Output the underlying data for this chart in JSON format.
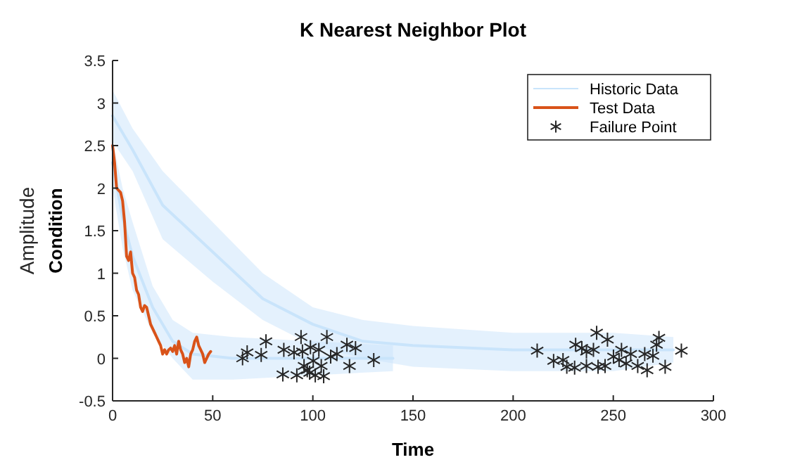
{
  "chart_data": {
    "type": "line",
    "title": "K Nearest Neighbor Plot",
    "xlabel": "Time",
    "ylabel": "Condition",
    "annotations": [
      "Amplitude"
    ],
    "xlim": [
      0,
      300
    ],
    "xticks": [
      0,
      50,
      100,
      150,
      200,
      250,
      300
    ],
    "ylim": [
      -0.5,
      3.5
    ],
    "yticks": [
      -0.5,
      0,
      0.5,
      1,
      1.5,
      2,
      2.5,
      3,
      3.5
    ],
    "grid": false,
    "legend": "top right",
    "marker": "none",
    "line_style": "solid",
    "series": [
      {
        "name": "Historic Data",
        "color": "#c9e4fb",
        "x": [
          0,
          10,
          25,
          50,
          75,
          100,
          125,
          150,
          200,
          250,
          280
        ],
        "values": [
          2.85,
          2.45,
          1.8,
          1.25,
          0.7,
          0.4,
          0.2,
          0.15,
          0.1,
          0.1,
          0.1
        ],
        "upper": [
          3.15,
          2.7,
          2.2,
          1.6,
          1.0,
          0.6,
          0.45,
          0.38,
          0.3,
          0.3,
          0.25
        ],
        "lower": [
          2.55,
          2.2,
          1.4,
          0.9,
          0.45,
          0.15,
          0.0,
          -0.1,
          -0.15,
          -0.15,
          -0.05
        ]
      },
      {
        "color": "#c9e4fb",
        "x": [
          0,
          5,
          10,
          20,
          30,
          40,
          60,
          100,
          140
        ],
        "values": [
          2.3,
          1.65,
          1.2,
          0.6,
          0.2,
          0.05,
          0,
          0,
          0
        ],
        "upper": [
          2.55,
          2.0,
          1.6,
          0.85,
          0.45,
          0.3,
          0.25,
          0.2,
          0.15
        ],
        "lower": [
          2.0,
          1.3,
          0.8,
          0.3,
          0.0,
          -0.25,
          -0.25,
          -0.2,
          -0.15
        ]
      },
      {
        "name": "Test Data",
        "color": "#d95319",
        "x": [
          0,
          1,
          2,
          4,
          5,
          6,
          7,
          8,
          9,
          10,
          11,
          12,
          13,
          14,
          15,
          16,
          17,
          18,
          19,
          20,
          21,
          22,
          23,
          24,
          25,
          26,
          27,
          28,
          29,
          30,
          31,
          32,
          33,
          34,
          35,
          36,
          37,
          38,
          39,
          40,
          41,
          42,
          43,
          44,
          45,
          46,
          47,
          48,
          49
        ],
        "values": [
          2.5,
          2.3,
          2.0,
          1.95,
          1.85,
          1.6,
          1.2,
          1.15,
          1.25,
          1.0,
          0.95,
          0.8,
          0.75,
          0.6,
          0.55,
          0.62,
          0.6,
          0.5,
          0.4,
          0.35,
          0.3,
          0.25,
          0.2,
          0.15,
          0.05,
          0.1,
          0.05,
          0.1,
          0.12,
          0.08,
          0.15,
          0.05,
          0.2,
          0.1,
          0.05,
          -0.05,
          0.0,
          -0.1,
          0.05,
          0.1,
          0.2,
          0.25,
          0.15,
          0.1,
          0.05,
          -0.05,
          0.0,
          0.05,
          0.08
        ]
      },
      {
        "name": "Failure Point",
        "type": "scatter",
        "marker": "cross",
        "color": "#262626",
        "x": [
          64.9,
          67.2,
          74.2,
          76.6,
          85,
          85.5,
          90.6,
          94.1,
          94.8,
          95.6,
          97.2,
          98.8,
          100.2,
          101.2,
          103,
          104.2,
          105.4,
          107,
          108.9,
          112,
          117,
          118.3,
          121.3,
          130.4,
          92,
          98.4,
          212,
          220.2,
          224.9,
          226.8,
          230.7,
          231.2,
          234.3,
          241.7,
          236.6,
          242.4,
          247.1,
          245.9,
          250.1,
          254.1,
          256.4,
          258.7,
          265.7,
          266.9,
          269.8,
          272.8,
          271.6,
          275.9,
          284,
          240.1,
          236.6,
          252.9,
          262.2
        ],
        "values": [
          0,
          0.07,
          0.04,
          0.2,
          -0.19,
          0.1,
          0.07,
          0.25,
          0.08,
          -0.09,
          -0.14,
          0.13,
          -0.03,
          -0.2,
          0.1,
          -0.09,
          -0.21,
          0.25,
          0.02,
          0.05,
          0.16,
          -0.09,
          0.12,
          -0.02,
          -0.2,
          -0.17,
          0.09,
          -0.03,
          -0.02,
          -0.1,
          -0.11,
          0.16,
          0.12,
          0.3,
          -0.09,
          -0.1,
          0.22,
          -0.09,
          0.02,
          0.1,
          -0.06,
          0.05,
          0.05,
          -0.14,
          0.03,
          0.24,
          0.16,
          -0.1,
          0.09,
          0.1,
          0.08,
          -0.02,
          -0.09
        ]
      }
    ]
  }
}
